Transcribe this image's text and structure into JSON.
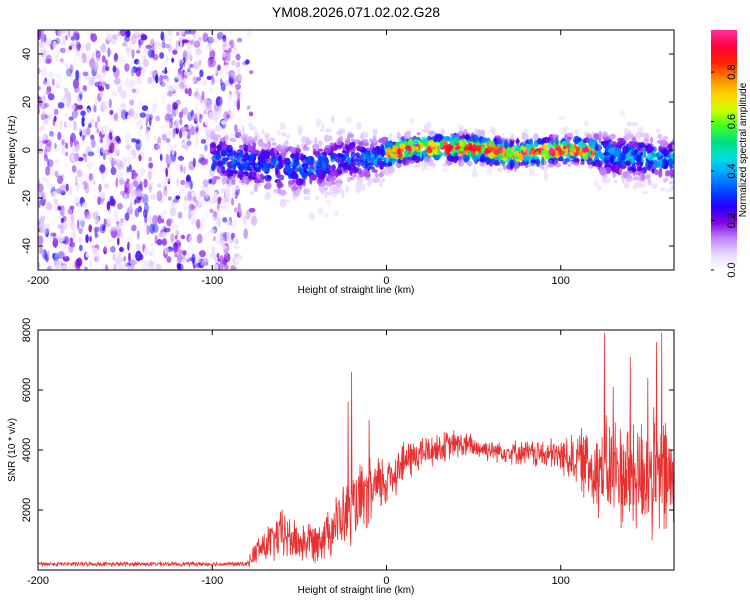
{
  "title": "YM08.2026.071.02.02.G28",
  "colorbar_stops": [
    "#ff30a0",
    "#ff0040",
    "#ff2000",
    "#ff8000",
    "#ffd000",
    "#d0ff00",
    "#40ff20",
    "#00e080",
    "#00e0e0",
    "#00a0ff",
    "#0050ff",
    "#2000ff",
    "#8000e0",
    "#c080ff",
    "#e8d8ff",
    "#ffffff"
  ],
  "chart_data": [
    {
      "type": "heatmap",
      "title": "YM08.2026.071.02.02.G28",
      "xlabel": "Height of straight line (km)",
      "ylabel": "Frequency (Hz)",
      "xlim": [
        -200,
        165
      ],
      "ylim": [
        -50,
        50
      ],
      "xticks": [
        -200,
        -100,
        0,
        100
      ],
      "yticks": [
        -40,
        -20,
        0,
        20,
        40
      ],
      "colorbar": {
        "label": "Normalized spectral amplitude",
        "range": [
          0.0,
          0.97
        ],
        "ticks": [
          "0.0",
          "0.2",
          "0.4",
          "0.6",
          "0.8"
        ]
      },
      "regions": [
        {
          "x_range": [
            -200,
            -84
          ],
          "description": "broadband noise, amplitude 0.1-0.3",
          "freq_range": [
            -50,
            50
          ]
        },
        {
          "x_range": [
            -100,
            -20
          ],
          "center_freq": -5,
          "spread": 10,
          "amplitude": 0.3
        },
        {
          "x_range": [
            -20,
            0
          ],
          "center_freq": -3,
          "spread": 8,
          "amplitude": 0.35
        },
        {
          "x_range": [
            0,
            120
          ],
          "center_freq": 0,
          "spread": 5,
          "amplitude": 0.9
        },
        {
          "x_range": [
            120,
            165
          ],
          "center_freq": -3,
          "spread": 8,
          "amplitude": 0.4
        }
      ],
      "ridge": [
        {
          "x": -95,
          "f": -4
        },
        {
          "x": -80,
          "f": -5
        },
        {
          "x": -60,
          "f": -8
        },
        {
          "x": -40,
          "f": -7
        },
        {
          "x": -20,
          "f": -3
        },
        {
          "x": -10,
          "f": -4
        },
        {
          "x": 0,
          "f": -2
        },
        {
          "x": 10,
          "f": 0
        },
        {
          "x": 20,
          "f": 1
        },
        {
          "x": 40,
          "f": 1
        },
        {
          "x": 60,
          "f": 0
        },
        {
          "x": 70,
          "f": -2
        },
        {
          "x": 80,
          "f": -1
        },
        {
          "x": 100,
          "f": 0
        },
        {
          "x": 110,
          "f": 0
        },
        {
          "x": 120,
          "f": -1
        },
        {
          "x": 140,
          "f": -3
        },
        {
          "x": 165,
          "f": -4
        }
      ]
    },
    {
      "type": "line",
      "xlabel": "Height of straight line (km)",
      "ylabel": "SNR (10 * v/v)",
      "xlim": [
        -200,
        165
      ],
      "ylim": [
        0,
        8000
      ],
      "xticks": [
        -200,
        -100,
        0,
        100
      ],
      "yticks": [
        2000,
        4000,
        6000,
        8000
      ],
      "color": "#e83030",
      "envelope": [
        {
          "x": -200,
          "mean": 200,
          "amp": 60
        },
        {
          "x": -80,
          "mean": 200,
          "amp": 60
        },
        {
          "x": -75,
          "mean": 600,
          "amp": 400
        },
        {
          "x": -60,
          "mean": 1200,
          "amp": 700
        },
        {
          "x": -50,
          "mean": 900,
          "amp": 600
        },
        {
          "x": -40,
          "mean": 1000,
          "amp": 600
        },
        {
          "x": -30,
          "mean": 1500,
          "amp": 800
        },
        {
          "x": -20,
          "mean": 2000,
          "amp": 1000
        },
        {
          "x": -10,
          "mean": 2500,
          "amp": 1000
        },
        {
          "x": 0,
          "mean": 3000,
          "amp": 800
        },
        {
          "x": 10,
          "mean": 3600,
          "amp": 600
        },
        {
          "x": 20,
          "mean": 3900,
          "amp": 500
        },
        {
          "x": 40,
          "mean": 4200,
          "amp": 400
        },
        {
          "x": 60,
          "mean": 4000,
          "amp": 300
        },
        {
          "x": 80,
          "mean": 3900,
          "amp": 350
        },
        {
          "x": 100,
          "mean": 3800,
          "amp": 500
        },
        {
          "x": 110,
          "mean": 3700,
          "amp": 800
        },
        {
          "x": 120,
          "mean": 3400,
          "amp": 1300
        },
        {
          "x": 140,
          "mean": 3200,
          "amp": 1700
        },
        {
          "x": 165,
          "mean": 3000,
          "amp": 1800
        }
      ],
      "spikes": [
        {
          "x": -20,
          "y": 6600
        },
        {
          "x": -22,
          "y": 5600
        },
        {
          "x": -10,
          "y": 5000
        },
        {
          "x": 125,
          "y": 7900
        },
        {
          "x": 140,
          "y": 7100
        },
        {
          "x": 155,
          "y": 7600
        },
        {
          "x": 158,
          "y": 7900
        },
        {
          "x": 150,
          "y": 6400
        },
        {
          "x": 130,
          "y": 6100
        }
      ]
    }
  ]
}
